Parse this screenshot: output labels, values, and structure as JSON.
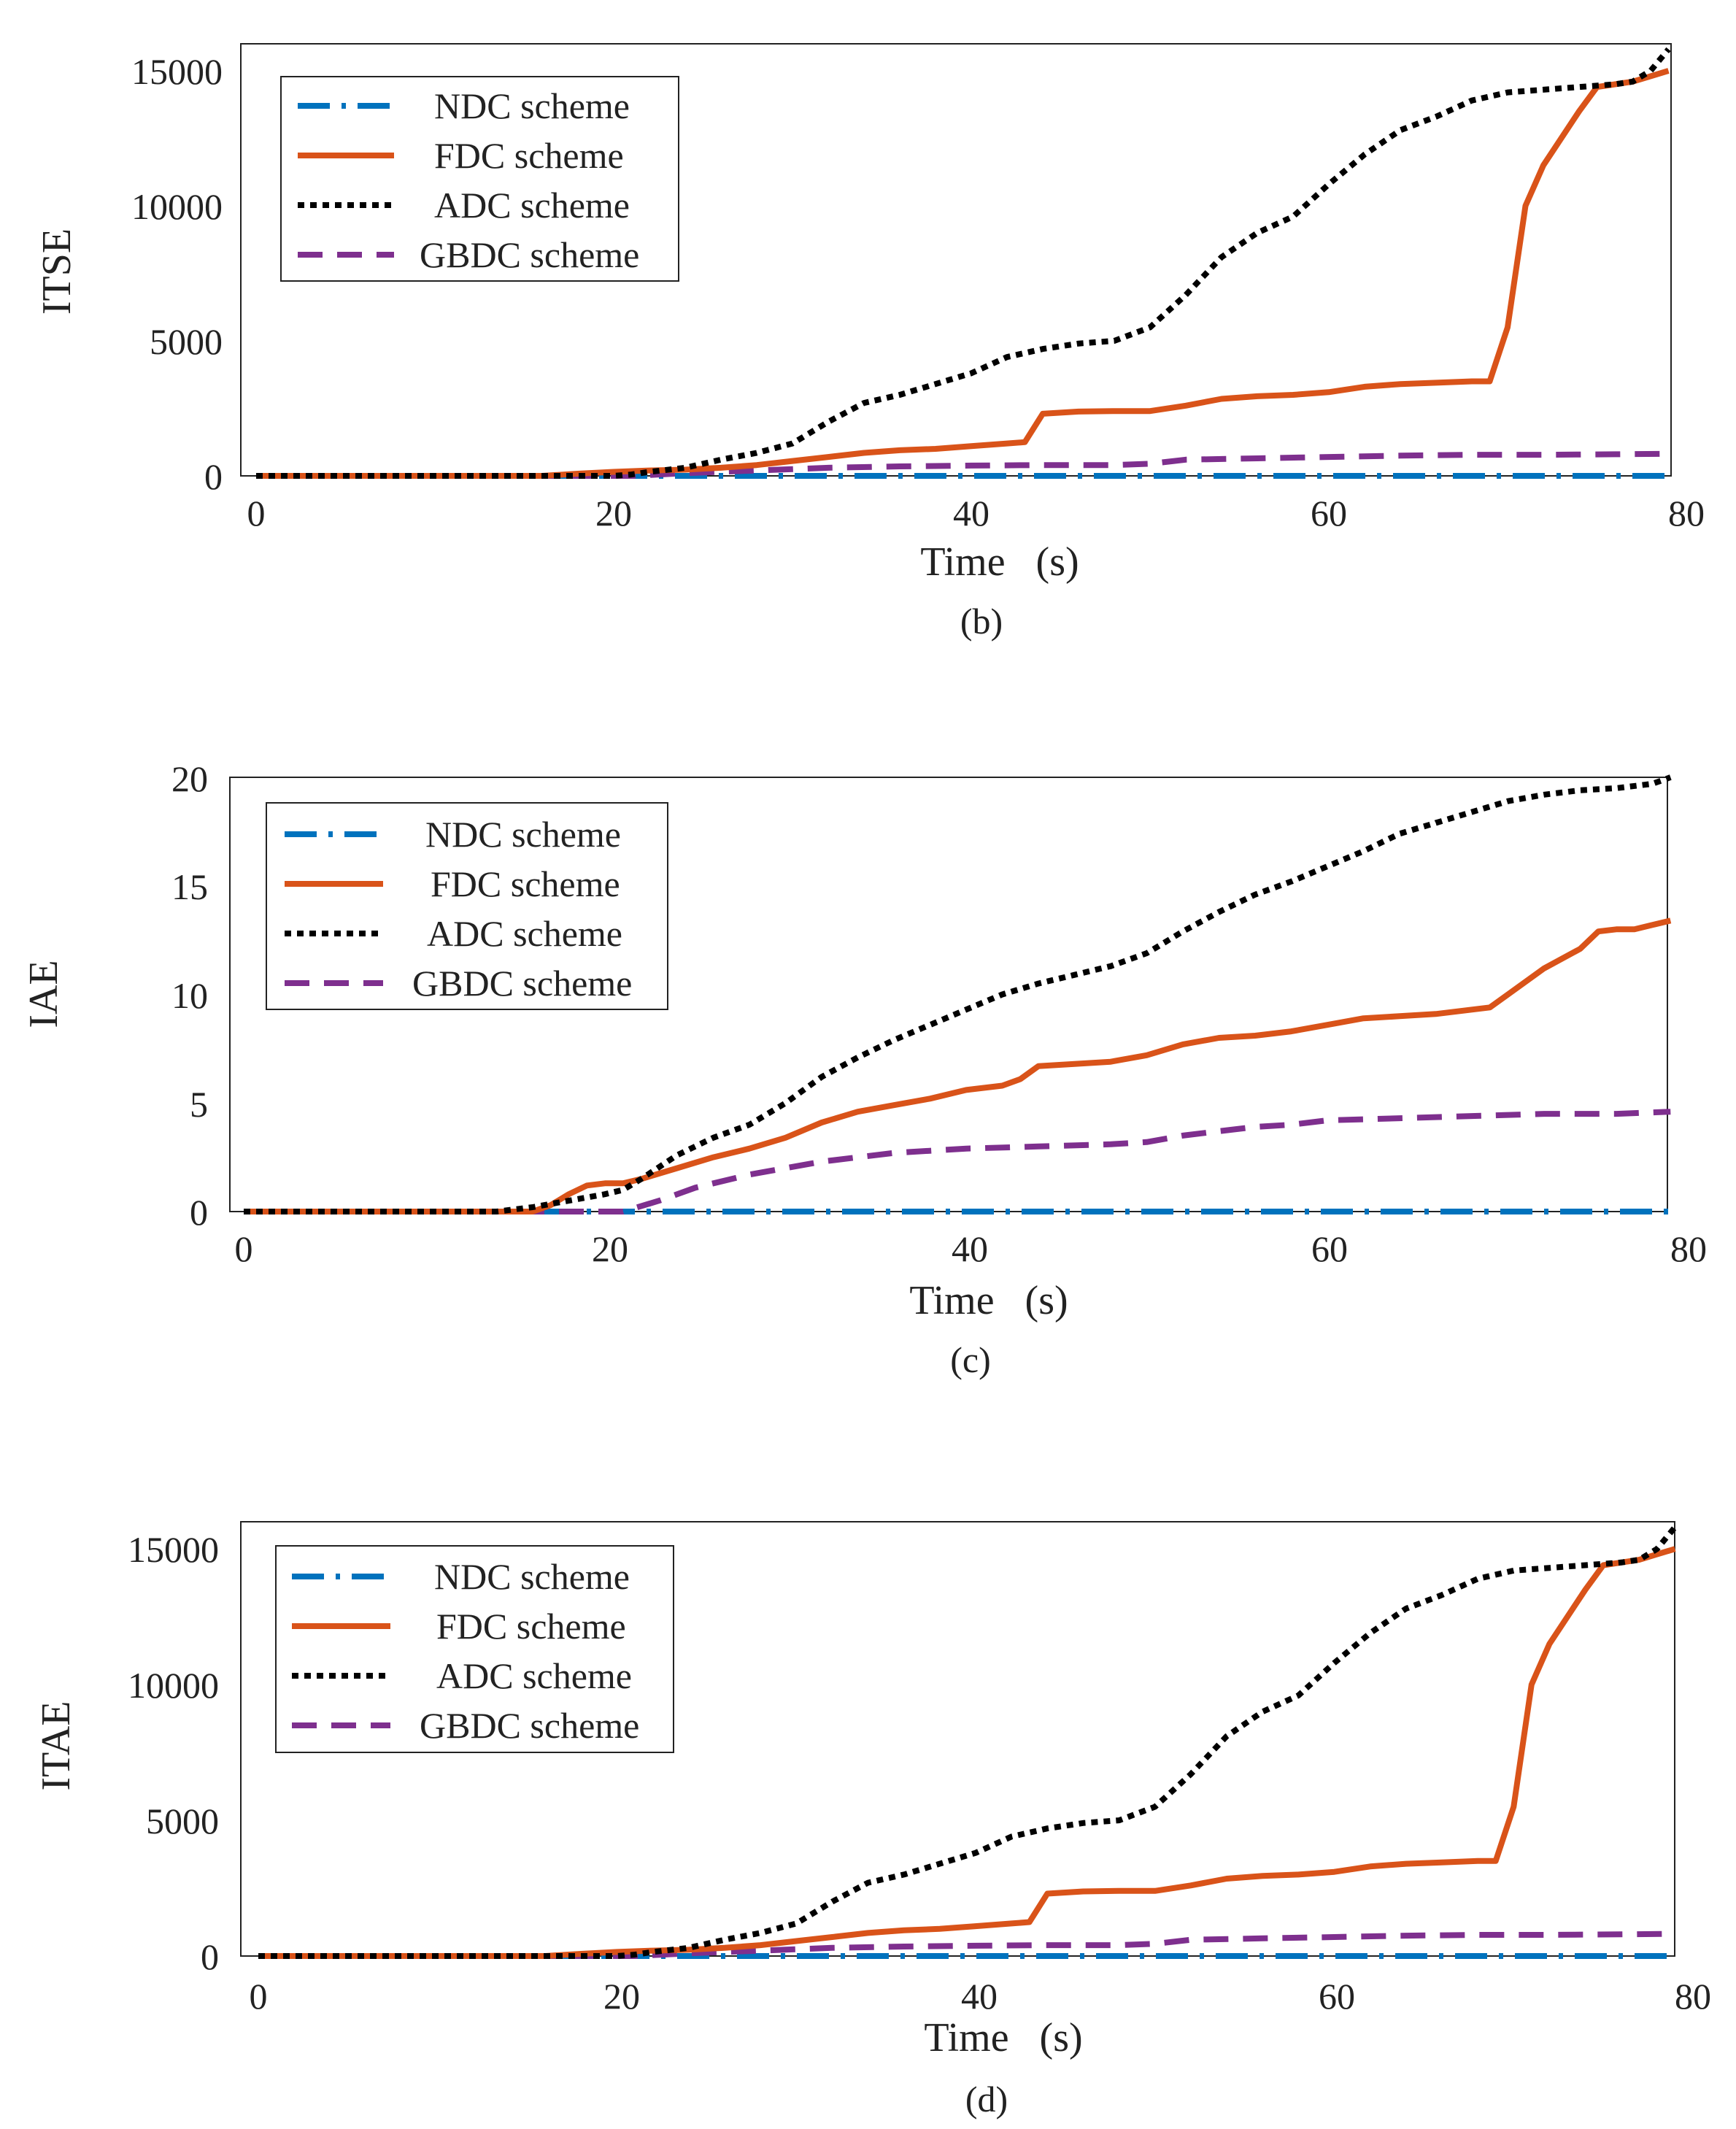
{
  "figure": {
    "panels": [
      {
        "id": "b",
        "caption": "(b)",
        "ylabel": "ITSE",
        "xlabel": "Time   (s)",
        "xticks": [
          "0",
          "20",
          "40",
          "60",
          "80"
        ],
        "yticks": [
          "0",
          "5000",
          "10000",
          "15000"
        ],
        "legend": [
          "NDC scheme",
          "FDC scheme",
          "ADC scheme",
          "GBDC scheme"
        ]
      },
      {
        "id": "c",
        "caption": "(c)",
        "ylabel": "IAE",
        "xlabel": "Time   (s)",
        "xticks": [
          "0",
          "20",
          "40",
          "60",
          "80"
        ],
        "yticks": [
          "0",
          "5",
          "10",
          "15",
          "20"
        ],
        "legend": [
          "NDC scheme",
          "FDC scheme",
          "ADC scheme",
          "GBDC scheme"
        ]
      },
      {
        "id": "d",
        "caption": "(d)",
        "ylabel": "ITAE",
        "xlabel": "Time   (s)",
        "xticks": [
          "0",
          "20",
          "40",
          "60",
          "80"
        ],
        "yticks": [
          "0",
          "5000",
          "10000",
          "15000"
        ],
        "legend": [
          "NDC scheme",
          "FDC scheme",
          "ADC scheme",
          "GBDC scheme"
        ]
      }
    ]
  },
  "chart_data": [
    {
      "type": "line",
      "xlabel": "Time   (s)",
      "ylabel": "ITSE",
      "xlim": [
        -1,
        79
      ],
      "ylim": [
        0,
        16000
      ],
      "grid": false,
      "legend_position": "top-left",
      "series": [
        {
          "name": "NDC scheme",
          "color": "#0072BD",
          "style": "dash-dot",
          "x": [
            0,
            79
          ],
          "y": [
            0,
            0
          ]
        },
        {
          "name": "FDC scheme",
          "color": "#D95319",
          "style": "solid",
          "x": [
            0,
            16,
            18,
            20,
            22,
            24,
            26,
            28,
            30,
            32,
            34,
            36,
            38,
            40,
            42,
            43,
            44,
            46,
            48,
            50,
            52,
            54,
            56,
            58,
            60,
            62,
            64,
            66,
            68,
            69,
            70,
            71,
            72,
            74,
            75,
            76,
            77,
            78,
            79
          ],
          "y": [
            0,
            0,
            80,
            150,
            200,
            230,
            300,
            400,
            550,
            700,
            850,
            950,
            1000,
            1100,
            1200,
            1250,
            2300,
            2380,
            2400,
            2400,
            2600,
            2850,
            2950,
            3000,
            3100,
            3300,
            3400,
            3450,
            3500,
            3500,
            5500,
            10000,
            11500,
            13500,
            14400,
            14500,
            14600,
            14800,
            15000
          ]
        },
        {
          "name": "ADC scheme",
          "color": "#000000",
          "style": "dotted",
          "x": [
            0,
            20,
            21,
            22,
            24,
            26,
            28,
            30,
            32,
            34,
            36,
            38,
            40,
            42,
            44,
            46,
            48,
            50,
            52,
            54,
            56,
            58,
            60,
            62,
            64,
            66,
            68,
            70,
            72,
            74,
            76,
            77,
            78,
            79
          ],
          "y": [
            0,
            0,
            50,
            150,
            300,
            600,
            850,
            1200,
            2000,
            2700,
            3000,
            3400,
            3800,
            4400,
            4700,
            4900,
            5000,
            5500,
            6700,
            8100,
            9000,
            9600,
            10800,
            11900,
            12800,
            13300,
            13900,
            14200,
            14300,
            14400,
            14500,
            14600,
            15000,
            15800
          ]
        },
        {
          "name": "GBDC scheme",
          "color": "#7E2F8E",
          "style": "dashed",
          "x": [
            0,
            21,
            24,
            28,
            32,
            36,
            40,
            44,
            48,
            50,
            52,
            56,
            60,
            64,
            68,
            72,
            76,
            79
          ],
          "y": [
            0,
            0,
            100,
            200,
            300,
            350,
            380,
            400,
            400,
            450,
            600,
            650,
            700,
            750,
            780,
            780,
            800,
            820
          ]
        }
      ]
    },
    {
      "type": "line",
      "xlabel": "Time   (s)",
      "ylabel": "IAE",
      "xlim": [
        -1,
        79
      ],
      "ylim": [
        0,
        20
      ],
      "grid": false,
      "legend_position": "top-left",
      "series": [
        {
          "name": "NDC scheme",
          "color": "#0072BD",
          "style": "dash-dot",
          "x": [
            0,
            79
          ],
          "y": [
            0,
            0
          ]
        },
        {
          "name": "FDC scheme",
          "color": "#D95319",
          "style": "solid",
          "x": [
            0,
            16,
            17,
            18,
            19,
            20,
            21,
            22,
            24,
            26,
            28,
            30,
            32,
            34,
            36,
            38,
            40,
            42,
            43,
            44,
            46,
            48,
            50,
            52,
            54,
            56,
            58,
            60,
            62,
            64,
            66,
            68,
            69,
            70,
            72,
            74,
            75,
            76,
            77,
            78,
            79
          ],
          "y": [
            0,
            0,
            0.3,
            0.8,
            1.2,
            1.3,
            1.3,
            1.5,
            2.0,
            2.5,
            2.9,
            3.4,
            4.1,
            4.6,
            4.9,
            5.2,
            5.6,
            5.8,
            6.1,
            6.7,
            6.8,
            6.9,
            7.2,
            7.7,
            8.0,
            8.1,
            8.3,
            8.6,
            8.9,
            9.0,
            9.1,
            9.3,
            9.4,
            10.0,
            11.2,
            12.1,
            12.9,
            13.0,
            13.0,
            13.2,
            13.4
          ]
        },
        {
          "name": "ADC scheme",
          "color": "#000000",
          "style": "dotted",
          "x": [
            0,
            14,
            16,
            18,
            20,
            21,
            22,
            24,
            26,
            28,
            30,
            32,
            34,
            36,
            38,
            40,
            42,
            44,
            46,
            48,
            50,
            52,
            54,
            56,
            58,
            60,
            62,
            64,
            66,
            68,
            70,
            72,
            74,
            76,
            78,
            79
          ],
          "y": [
            0,
            0,
            0.2,
            0.5,
            0.8,
            1.0,
            1.5,
            2.6,
            3.4,
            4.0,
            5.0,
            6.2,
            7.1,
            7.9,
            8.6,
            9.3,
            10.0,
            10.5,
            10.9,
            11.3,
            11.9,
            12.9,
            13.8,
            14.6,
            15.2,
            15.9,
            16.6,
            17.4,
            17.9,
            18.4,
            18.9,
            19.2,
            19.4,
            19.5,
            19.7,
            20.0
          ]
        },
        {
          "name": "GBDC scheme",
          "color": "#7E2F8E",
          "style": "dashed",
          "x": [
            0,
            21,
            23,
            25,
            28,
            30,
            32,
            34,
            36,
            40,
            44,
            48,
            50,
            52,
            54,
            56,
            58,
            60,
            64,
            68,
            72,
            76,
            79
          ],
          "y": [
            0,
            0,
            0.5,
            1.1,
            1.7,
            2.0,
            2.3,
            2.5,
            2.7,
            2.9,
            3.0,
            3.1,
            3.2,
            3.5,
            3.7,
            3.9,
            4.0,
            4.2,
            4.3,
            4.4,
            4.5,
            4.5,
            4.6
          ]
        }
      ]
    },
    {
      "type": "line",
      "xlabel": "Time   (s)",
      "ylabel": "ITAE",
      "xlim": [
        -1,
        79
      ],
      "ylim": [
        0,
        16000
      ],
      "grid": false,
      "legend_position": "top-left",
      "series": [
        {
          "name": "NDC scheme",
          "color": "#0072BD",
          "style": "dash-dot",
          "x": [
            0,
            79
          ],
          "y": [
            0,
            0
          ]
        },
        {
          "name": "FDC scheme",
          "color": "#D95319",
          "style": "solid",
          "x": [
            0,
            16,
            18,
            20,
            22,
            24,
            26,
            28,
            30,
            32,
            34,
            36,
            38,
            40,
            42,
            43,
            44,
            46,
            48,
            50,
            52,
            54,
            56,
            58,
            60,
            62,
            64,
            66,
            68,
            69,
            70,
            71,
            72,
            74,
            75,
            76,
            77,
            78,
            79
          ],
          "y": [
            0,
            0,
            80,
            150,
            200,
            230,
            300,
            400,
            550,
            700,
            850,
            950,
            1000,
            1100,
            1200,
            1250,
            2300,
            2380,
            2400,
            2400,
            2600,
            2850,
            2950,
            3000,
            3100,
            3300,
            3400,
            3450,
            3500,
            3500,
            5500,
            10000,
            11500,
            13500,
            14400,
            14500,
            14600,
            14800,
            15000
          ]
        },
        {
          "name": "ADC scheme",
          "color": "#000000",
          "style": "dotted",
          "x": [
            0,
            20,
            21,
            22,
            24,
            26,
            28,
            30,
            32,
            34,
            36,
            38,
            40,
            42,
            44,
            46,
            48,
            50,
            52,
            54,
            56,
            58,
            60,
            62,
            64,
            66,
            68,
            70,
            72,
            74,
            76,
            77,
            78,
            79
          ],
          "y": [
            0,
            0,
            50,
            150,
            300,
            600,
            850,
            1200,
            2000,
            2700,
            3000,
            3400,
            3800,
            4400,
            4700,
            4900,
            5000,
            5500,
            6700,
            8100,
            9000,
            9600,
            10800,
            11900,
            12800,
            13300,
            13900,
            14200,
            14300,
            14400,
            14500,
            14600,
            15000,
            15800
          ]
        },
        {
          "name": "GBDC scheme",
          "color": "#7E2F8E",
          "style": "dashed",
          "x": [
            0,
            21,
            24,
            28,
            32,
            36,
            40,
            44,
            48,
            50,
            52,
            56,
            60,
            64,
            68,
            72,
            76,
            79
          ],
          "y": [
            0,
            0,
            100,
            200,
            300,
            350,
            380,
            400,
            400,
            450,
            600,
            650,
            700,
            750,
            780,
            780,
            800,
            820
          ]
        }
      ]
    }
  ]
}
